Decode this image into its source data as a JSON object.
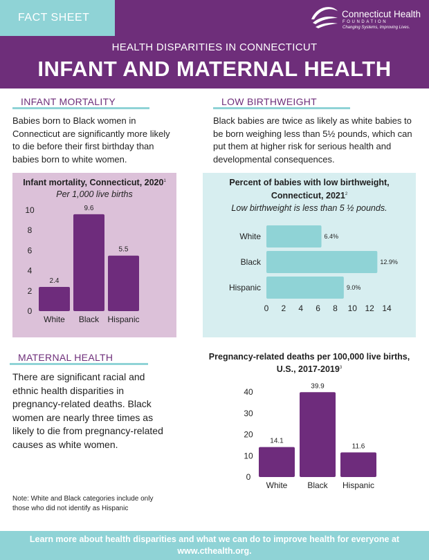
{
  "header": {
    "tab_label": "FACT SHEET",
    "logo_name": "Connecticut Health",
    "logo_sub": "FOUNDATION",
    "logo_tagline": "Changing Systems, Improving Lives.",
    "subtitle": "HEALTH DISPARITIES IN CONNECTICUT",
    "title": "INFANT AND MATERNAL HEALTH"
  },
  "infant_mortality": {
    "heading": "INFANT MORTALITY",
    "text": "Babies born to Black women in Connecticut are significantly more likely to die before their first birthday than babies born to white women."
  },
  "low_birthweight": {
    "heading": "LOW BIRTHWEIGHT",
    "text": "Black babies are twice as likely as white babies to be born weighing less than 5½ pounds, which can put them at higher risk for serious health and developmental consequences."
  },
  "maternal_health": {
    "heading": "MATERNAL HEALTH",
    "text": "There are significant racial and ethnic health disparities in pregnancy-related deaths. Black women are nearly three times as likely to die from pregnancy-related causes as white women."
  },
  "note": "Note: White and Black categories include only those who did not identify as Hispanic",
  "footer": {
    "line1": "Learn more about health disparities and what we can do to improve health for everyone at",
    "line2": "www.cthealth.org."
  },
  "colors": {
    "purple": "#6e2e7a",
    "teal": "#8fd3d6",
    "bar_purple": "#6e2c7c",
    "bar_teal": "#8fd3d6",
    "panel_pink": "#dcc1d9",
    "panel_teal": "#d7eef0"
  },
  "chart_data": [
    {
      "type": "bar",
      "title": "Infant mortality, Connecticut, 2020",
      "title_note": "1",
      "subtitle": "Per 1,000 live births",
      "categories": [
        "White",
        "Black",
        "Hispanic"
      ],
      "values": [
        2.4,
        9.6,
        5.5
      ],
      "value_labels": [
        "2.4",
        "9.6",
        "5.5"
      ],
      "yticks": [
        "0",
        "2",
        "4",
        "6",
        "8",
        "10"
      ],
      "ylim": [
        0,
        10
      ],
      "grid": false,
      "legend": "none"
    },
    {
      "type": "bar",
      "orientation": "horizontal",
      "title_line1": "Percent of babies with low birthweight,",
      "title_line2": "Connecticut, 2021",
      "title_note": "2",
      "subtitle": "Low birthweight is less than 5 ½ pounds.",
      "categories": [
        "White",
        "Black",
        "Hispanic"
      ],
      "values": [
        6.4,
        12.9,
        9.0
      ],
      "value_labels": [
        "6.4%",
        "12.9%",
        "9.0%"
      ],
      "xticks": [
        "0",
        "2",
        "4",
        "6",
        "8",
        "10",
        "12",
        "14"
      ],
      "xlim": [
        0,
        14
      ],
      "grid": false,
      "legend": "none"
    },
    {
      "type": "bar",
      "title_line1": "Pregnancy-related deaths per 100,000 live births,",
      "title_line2": "U.S., 2017-2019",
      "title_note": "3",
      "categories": [
        "White",
        "Black",
        "Hispanic"
      ],
      "values": [
        14.1,
        39.9,
        11.6
      ],
      "value_labels": [
        "14.1",
        "39.9",
        "11.6"
      ],
      "yticks": [
        "0",
        "10",
        "20",
        "30",
        "40"
      ],
      "ylim": [
        0,
        40
      ],
      "grid": false,
      "legend": "none"
    }
  ]
}
